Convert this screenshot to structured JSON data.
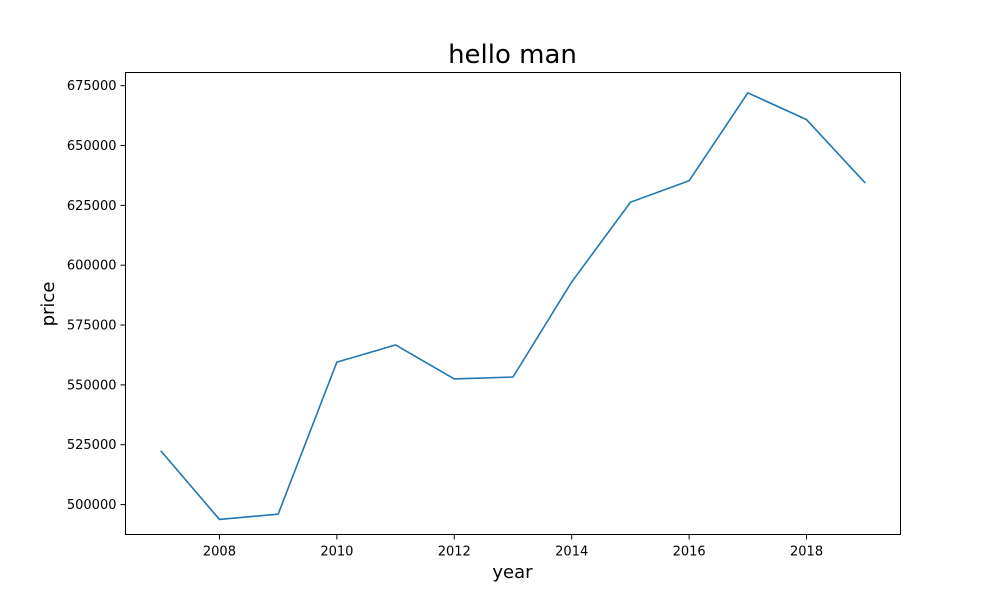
{
  "chart_data": {
    "type": "line",
    "title": "hello man",
    "xlabel": "year",
    "ylabel": "price",
    "xlim": [
      2006.4,
      2019.6
    ],
    "ylim": [
      487500,
      680500
    ],
    "xticks": [
      2008,
      2010,
      2012,
      2014,
      2016,
      2018
    ],
    "xtick_labels": [
      "2008",
      "2010",
      "2012",
      "2014",
      "2016",
      "2018"
    ],
    "yticks": [
      500000,
      525000,
      550000,
      575000,
      600000,
      625000,
      650000,
      675000
    ],
    "ytick_labels": [
      "500000",
      "525000",
      "550000",
      "575000",
      "600000",
      "625000",
      "650000",
      "675000"
    ],
    "grid": false,
    "legend": "none",
    "series": [
      {
        "color": "#1f77b4",
        "x": [
          2007,
          2008,
          2009,
          2010,
          2011,
          2012,
          2013,
          2014,
          2015,
          2016,
          2017,
          2018,
          2019
        ],
        "y": [
          522500,
          493800,
          496000,
          559500,
          566700,
          552500,
          553300,
          593000,
          626300,
          635300,
          672000,
          660800,
          634300
        ]
      }
    ]
  }
}
